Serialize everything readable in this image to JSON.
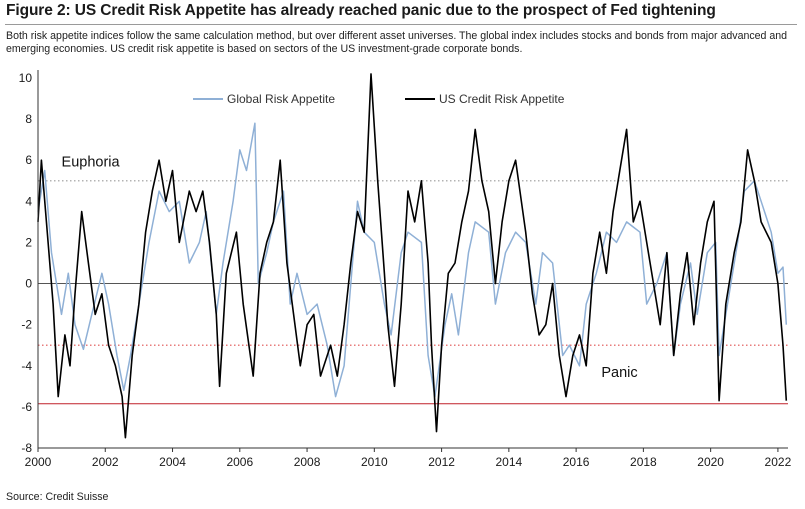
{
  "header": {
    "title": "Figure 2: US Credit Risk Appetite has already reached panic due to the prospect of Fed tightening",
    "subtitle": "Both risk appetite indices follow the same calculation method, but over different asset universes. The global index includes stocks and bonds from major advanced and emerging economies. US credit risk appetite is based on sectors of the US investment-grade corporate bonds."
  },
  "footer": {
    "source": "Source: Credit Suisse"
  },
  "chart_data": {
    "type": "line",
    "xlabel": "",
    "ylabel": "",
    "xlim": [
      2000,
      2022.3
    ],
    "ylim": [
      -8,
      10
    ],
    "x_ticks": [
      "2000",
      "2002",
      "2004",
      "2006",
      "2008",
      "2010",
      "2012",
      "2014",
      "2016",
      "2018",
      "2020",
      "2022"
    ],
    "y_ticks": [
      "10",
      "8",
      "6",
      "4",
      "2",
      "0",
      "-2",
      "-4",
      "-6",
      "-8"
    ],
    "legend_position": "top-center",
    "grid": false,
    "reference_lines": [
      {
        "value": 5,
        "style": "dotted",
        "color": "#9a9a9a"
      },
      {
        "value": 0,
        "style": "solid",
        "color": "#555555"
      },
      {
        "value": -3,
        "style": "dotted",
        "color": "#e05050"
      },
      {
        "value": -5.85,
        "style": "solid",
        "color": "#c0202a"
      }
    ],
    "annotations": [
      {
        "text": "Euphoria",
        "x": 2000.7,
        "y": 5.7
      },
      {
        "text": "Panic",
        "x": 2016.75,
        "y": -4.55
      }
    ],
    "series": [
      {
        "name": "Global Risk Appetite",
        "color": "#8fb0d6",
        "points": [
          [
            2000.0,
            3.5
          ],
          [
            2000.2,
            5.5
          ],
          [
            2000.4,
            1.5
          ],
          [
            2000.7,
            -1.5
          ],
          [
            2000.9,
            0.5
          ],
          [
            2001.1,
            -2.0
          ],
          [
            2001.35,
            -3.2
          ],
          [
            2001.6,
            -1.5
          ],
          [
            2001.9,
            0.5
          ],
          [
            2002.1,
            -1.0
          ],
          [
            2002.35,
            -3.5
          ],
          [
            2002.55,
            -5.2
          ],
          [
            2002.75,
            -3.5
          ],
          [
            2003.0,
            -1.0
          ],
          [
            2003.3,
            2.0
          ],
          [
            2003.6,
            4.5
          ],
          [
            2003.9,
            3.5
          ],
          [
            2004.2,
            4.0
          ],
          [
            2004.5,
            1.0
          ],
          [
            2004.8,
            2.0
          ],
          [
            2005.0,
            3.5
          ],
          [
            2005.3,
            -1.5
          ],
          [
            2005.5,
            1.0
          ],
          [
            2005.8,
            4.0
          ],
          [
            2006.0,
            6.5
          ],
          [
            2006.2,
            5.5
          ],
          [
            2006.45,
            7.8
          ],
          [
            2006.55,
            0.0
          ],
          [
            2006.8,
            1.5
          ],
          [
            2007.0,
            3.0
          ],
          [
            2007.3,
            4.5
          ],
          [
            2007.5,
            -1.0
          ],
          [
            2007.7,
            0.5
          ],
          [
            2008.0,
            -1.5
          ],
          [
            2008.3,
            -1.0
          ],
          [
            2008.6,
            -3.0
          ],
          [
            2008.85,
            -5.5
          ],
          [
            2009.1,
            -4.0
          ],
          [
            2009.35,
            1.0
          ],
          [
            2009.5,
            4.0
          ],
          [
            2009.7,
            2.5
          ],
          [
            2010.0,
            2.0
          ],
          [
            2010.3,
            -1.0
          ],
          [
            2010.5,
            -2.5
          ],
          [
            2010.8,
            1.5
          ],
          [
            2011.0,
            2.5
          ],
          [
            2011.4,
            2.0
          ],
          [
            2011.6,
            -3.5
          ],
          [
            2011.8,
            -5.5
          ],
          [
            2012.1,
            -2.0
          ],
          [
            2012.3,
            -0.5
          ],
          [
            2012.5,
            -2.5
          ],
          [
            2012.8,
            1.5
          ],
          [
            2013.0,
            3.0
          ],
          [
            2013.4,
            2.5
          ],
          [
            2013.6,
            -1.0
          ],
          [
            2013.9,
            1.5
          ],
          [
            2014.2,
            2.5
          ],
          [
            2014.5,
            2.0
          ],
          [
            2014.8,
            -1.0
          ],
          [
            2015.0,
            1.5
          ],
          [
            2015.3,
            1.0
          ],
          [
            2015.6,
            -3.5
          ],
          [
            2015.8,
            -3.0
          ],
          [
            2016.1,
            -4.0
          ],
          [
            2016.3,
            -1.0
          ],
          [
            2016.6,
            0.5
          ],
          [
            2016.9,
            2.5
          ],
          [
            2017.2,
            2.0
          ],
          [
            2017.5,
            3.0
          ],
          [
            2017.9,
            2.5
          ],
          [
            2018.1,
            -1.0
          ],
          [
            2018.4,
            0.0
          ],
          [
            2018.7,
            1.5
          ],
          [
            2018.9,
            -3.5
          ],
          [
            2019.1,
            -1.0
          ],
          [
            2019.4,
            1.0
          ],
          [
            2019.6,
            -1.5
          ],
          [
            2019.9,
            1.5
          ],
          [
            2020.15,
            2.0
          ],
          [
            2020.25,
            -3.5
          ],
          [
            2020.5,
            -1.0
          ],
          [
            2020.8,
            2.0
          ],
          [
            2021.0,
            4.5
          ],
          [
            2021.3,
            5.0
          ],
          [
            2021.6,
            3.5
          ],
          [
            2021.8,
            2.5
          ],
          [
            2022.0,
            0.5
          ],
          [
            2022.15,
            0.8
          ],
          [
            2022.25,
            -2.0
          ]
        ]
      },
      {
        "name": "US Credit Risk Appetite",
        "color": "#000000",
        "points": [
          [
            2000.0,
            3.0
          ],
          [
            2000.1,
            6.0
          ],
          [
            2000.3,
            2.0
          ],
          [
            2000.45,
            -1.0
          ],
          [
            2000.6,
            -5.5
          ],
          [
            2000.8,
            -2.5
          ],
          [
            2000.95,
            -4.0
          ],
          [
            2001.1,
            -0.5
          ],
          [
            2001.3,
            3.5
          ],
          [
            2001.5,
            1.0
          ],
          [
            2001.7,
            -1.5
          ],
          [
            2001.9,
            -0.5
          ],
          [
            2002.1,
            -3.0
          ],
          [
            2002.3,
            -4.0
          ],
          [
            2002.5,
            -5.5
          ],
          [
            2002.6,
            -7.5
          ],
          [
            2002.8,
            -3.5
          ],
          [
            2003.0,
            -1.0
          ],
          [
            2003.2,
            2.5
          ],
          [
            2003.4,
            4.5
          ],
          [
            2003.6,
            6.0
          ],
          [
            2003.8,
            4.0
          ],
          [
            2004.0,
            5.5
          ],
          [
            2004.2,
            2.0
          ],
          [
            2004.5,
            4.5
          ],
          [
            2004.7,
            3.5
          ],
          [
            2004.9,
            4.5
          ],
          [
            2005.1,
            2.0
          ],
          [
            2005.3,
            -1.5
          ],
          [
            2005.4,
            -5.0
          ],
          [
            2005.6,
            0.5
          ],
          [
            2005.9,
            2.5
          ],
          [
            2006.1,
            -1.0
          ],
          [
            2006.4,
            -4.5
          ],
          [
            2006.6,
            0.5
          ],
          [
            2006.8,
            2.0
          ],
          [
            2007.0,
            3.0
          ],
          [
            2007.2,
            6.0
          ],
          [
            2007.4,
            1.0
          ],
          [
            2007.6,
            -1.5
          ],
          [
            2007.8,
            -4.0
          ],
          [
            2008.0,
            -2.0
          ],
          [
            2008.2,
            -1.5
          ],
          [
            2008.4,
            -4.5
          ],
          [
            2008.7,
            -3.0
          ],
          [
            2008.9,
            -4.5
          ],
          [
            2009.1,
            -2.0
          ],
          [
            2009.3,
            1.0
          ],
          [
            2009.5,
            3.5
          ],
          [
            2009.7,
            2.5
          ],
          [
            2009.9,
            10.2
          ],
          [
            2010.1,
            5.0
          ],
          [
            2010.3,
            0.5
          ],
          [
            2010.4,
            -2.0
          ],
          [
            2010.6,
            -5.0
          ],
          [
            2010.8,
            -1.0
          ],
          [
            2011.0,
            4.5
          ],
          [
            2011.2,
            3.0
          ],
          [
            2011.4,
            5.0
          ],
          [
            2011.6,
            1.0
          ],
          [
            2011.7,
            -3.0
          ],
          [
            2011.85,
            -7.2
          ],
          [
            2012.0,
            -3.0
          ],
          [
            2012.2,
            0.5
          ],
          [
            2012.4,
            1.0
          ],
          [
            2012.6,
            3.0
          ],
          [
            2012.8,
            4.5
          ],
          [
            2013.0,
            7.5
          ],
          [
            2013.2,
            5.0
          ],
          [
            2013.4,
            3.5
          ],
          [
            2013.6,
            0.0
          ],
          [
            2013.8,
            3.0
          ],
          [
            2014.0,
            5.0
          ],
          [
            2014.2,
            6.0
          ],
          [
            2014.5,
            2.5
          ],
          [
            2014.7,
            -0.5
          ],
          [
            2014.9,
            -2.5
          ],
          [
            2015.1,
            -2.0
          ],
          [
            2015.3,
            0.0
          ],
          [
            2015.5,
            -3.5
          ],
          [
            2015.7,
            -5.5
          ],
          [
            2015.9,
            -3.5
          ],
          [
            2016.1,
            -2.5
          ],
          [
            2016.3,
            -4.0
          ],
          [
            2016.5,
            0.5
          ],
          [
            2016.7,
            2.5
          ],
          [
            2016.9,
            0.5
          ],
          [
            2017.1,
            3.5
          ],
          [
            2017.3,
            5.5
          ],
          [
            2017.5,
            7.5
          ],
          [
            2017.7,
            3.0
          ],
          [
            2017.9,
            4.0
          ],
          [
            2018.1,
            2.0
          ],
          [
            2018.3,
            0.0
          ],
          [
            2018.5,
            -2.0
          ],
          [
            2018.7,
            1.5
          ],
          [
            2018.9,
            -3.5
          ],
          [
            2019.1,
            -0.5
          ],
          [
            2019.3,
            1.5
          ],
          [
            2019.5,
            -2.0
          ],
          [
            2019.7,
            1.0
          ],
          [
            2019.9,
            3.0
          ],
          [
            2020.1,
            4.0
          ],
          [
            2020.25,
            -5.7
          ],
          [
            2020.45,
            -1.0
          ],
          [
            2020.7,
            1.5
          ],
          [
            2020.9,
            3.0
          ],
          [
            2021.1,
            6.5
          ],
          [
            2021.3,
            5.0
          ],
          [
            2021.5,
            3.0
          ],
          [
            2021.8,
            2.0
          ],
          [
            2022.0,
            0.0
          ],
          [
            2022.15,
            -3.0
          ],
          [
            2022.25,
            -5.7
          ]
        ]
      }
    ]
  }
}
